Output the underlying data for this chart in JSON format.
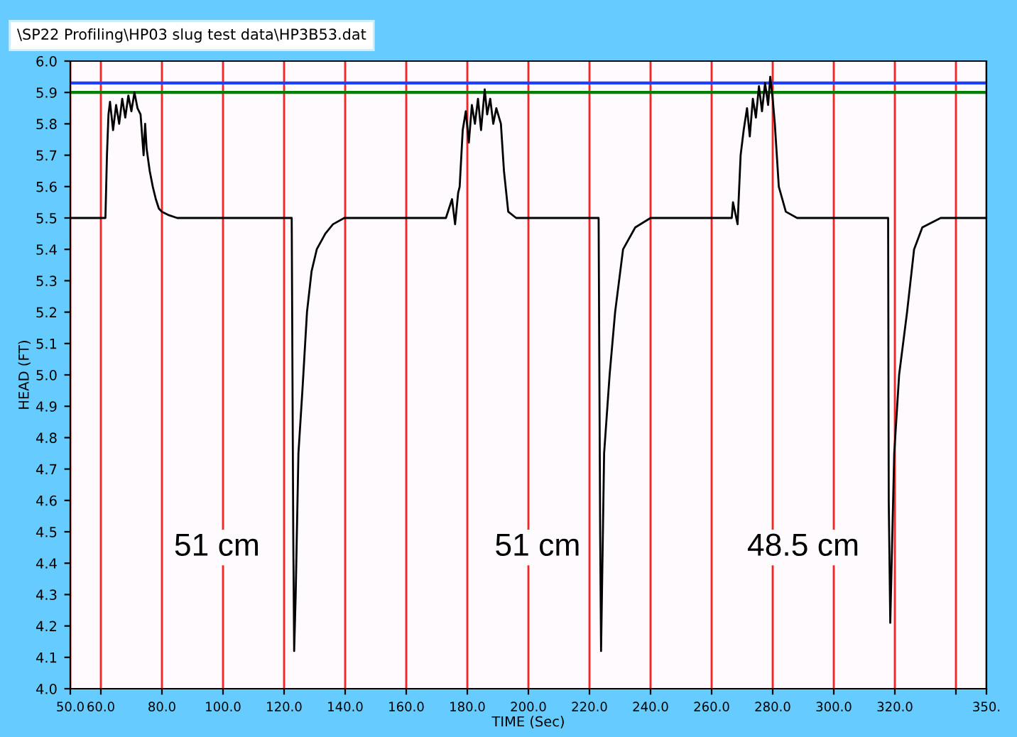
{
  "chart_data": {
    "type": "line",
    "title": "\\SP22 Profiling\\HP03 slug test data\\HP3B53.dat",
    "xlabel": "TIME (Sec)",
    "ylabel": "HEAD (FT)",
    "series": [
      {
        "color": "#000000",
        "x": [
          50,
          55,
          60,
          61.5,
          62,
          62.5,
          63,
          64,
          65,
          66,
          67,
          68,
          69,
          70,
          71,
          72,
          73,
          74,
          74.5,
          75,
          76,
          77,
          78,
          79,
          80,
          82,
          85,
          95,
          110,
          122.5,
          123,
          123.3,
          123.8,
          124.7,
          126,
          127.5,
          129,
          130.7,
          133.5,
          136,
          139.7,
          150,
          165,
          173,
          175,
          176,
          177,
          177.5,
          178.5,
          179.5,
          180.5,
          181.5,
          182.5,
          183.5,
          184.5,
          185.7,
          186.5,
          187.5,
          188.5,
          189.5,
          191,
          192,
          193.4,
          196,
          210,
          223,
          223.5,
          223.8,
          224.8,
          226.6,
          228.4,
          231,
          235,
          240,
          255,
          266.6,
          267,
          268.5,
          269.5,
          270.5,
          271.6,
          272.5,
          273.5,
          274.5,
          275.5,
          276.5,
          277.5,
          278.5,
          279.2,
          280,
          280.7,
          282,
          284.3,
          288,
          300,
          317.8,
          318,
          318.5,
          319.8,
          321.4,
          324,
          326.3,
          329,
          335,
          345,
          350
        ],
        "values": [
          5.5,
          5.5,
          5.5,
          5.5,
          5.7,
          5.83,
          5.87,
          5.78,
          5.86,
          5.8,
          5.88,
          5.82,
          5.89,
          5.84,
          5.9,
          5.85,
          5.83,
          5.7,
          5.8,
          5.72,
          5.65,
          5.6,
          5.56,
          5.53,
          5.52,
          5.51,
          5.5,
          5.5,
          5.5,
          5.5,
          4.5,
          4.12,
          4.3,
          4.75,
          4.95,
          5.2,
          5.33,
          5.4,
          5.45,
          5.48,
          5.5,
          5.5,
          5.5,
          5.5,
          5.56,
          5.48,
          5.58,
          5.6,
          5.78,
          5.84,
          5.74,
          5.86,
          5.8,
          5.88,
          5.78,
          5.91,
          5.83,
          5.88,
          5.8,
          5.85,
          5.8,
          5.65,
          5.52,
          5.5,
          5.5,
          5.5,
          4.5,
          4.12,
          4.75,
          5.0,
          5.2,
          5.4,
          5.47,
          5.5,
          5.5,
          5.5,
          5.55,
          5.48,
          5.7,
          5.78,
          5.85,
          5.76,
          5.88,
          5.82,
          5.92,
          5.84,
          5.93,
          5.86,
          5.95,
          5.88,
          5.8,
          5.6,
          5.52,
          5.5,
          5.5,
          5.5,
          4.6,
          4.21,
          4.75,
          5.0,
          5.2,
          5.4,
          5.47,
          5.5,
          5.5,
          5.5
        ]
      }
    ],
    "xlim": [
      50,
      350
    ],
    "ylim": [
      4.0,
      6.0
    ],
    "xticks": [
      {
        "value": 50,
        "label": "50.0"
      },
      {
        "value": 60,
        "label": "60.0"
      },
      {
        "value": 80,
        "label": "80.0"
      },
      {
        "value": 100,
        "label": "100.0"
      },
      {
        "value": 120,
        "label": "120.0"
      },
      {
        "value": 140,
        "label": "140.0"
      },
      {
        "value": 160,
        "label": "160.0"
      },
      {
        "value": 180,
        "label": "180.0"
      },
      {
        "value": 200,
        "label": "200.0"
      },
      {
        "value": 220,
        "label": "220.0"
      },
      {
        "value": 240,
        "label": "240.0"
      },
      {
        "value": 260,
        "label": "260.0"
      },
      {
        "value": 280,
        "label": "280.0"
      },
      {
        "value": 300,
        "label": "300.0"
      },
      {
        "value": 320,
        "label": "320.0"
      },
      {
        "value": 340,
        "label": null
      },
      {
        "value": 350,
        "label": "350."
      }
    ],
    "yticks": [
      {
        "value": 4.0,
        "label": "4.0"
      },
      {
        "value": 4.1,
        "label": "4.1"
      },
      {
        "value": 4.2,
        "label": "4.2"
      },
      {
        "value": 4.3,
        "label": "4.3"
      },
      {
        "value": 4.4,
        "label": "4.4"
      },
      {
        "value": 4.5,
        "label": "4.5"
      },
      {
        "value": 4.6,
        "label": "4.6"
      },
      {
        "value": 4.7,
        "label": "4.7"
      },
      {
        "value": 4.8,
        "label": "4.8"
      },
      {
        "value": 4.9,
        "label": "4.9"
      },
      {
        "value": 5.0,
        "label": "5.0"
      },
      {
        "value": 5.1,
        "label": "5.1"
      },
      {
        "value": 5.2,
        "label": "5.2"
      },
      {
        "value": 5.3,
        "label": "5.3"
      },
      {
        "value": 5.4,
        "label": "5.4"
      },
      {
        "value": 5.5,
        "label": "5.5"
      },
      {
        "value": 5.6,
        "label": "5.6"
      },
      {
        "value": 5.7,
        "label": "5.7"
      },
      {
        "value": 5.8,
        "label": "5.8"
      },
      {
        "value": 5.9,
        "label": "5.9"
      },
      {
        "value": 6.0,
        "label": "6.0"
      }
    ],
    "grid": "x",
    "ref_lines": [
      {
        "axis": "y",
        "value": 5.93,
        "color": "#1f3fff"
      },
      {
        "axis": "y",
        "value": 5.9,
        "color": "#008000"
      }
    ],
    "annotations": [
      "51 cm",
      "51 cm",
      "48.5 cm"
    ],
    "legend": false,
    "marker": "none",
    "line_style": "solid"
  }
}
